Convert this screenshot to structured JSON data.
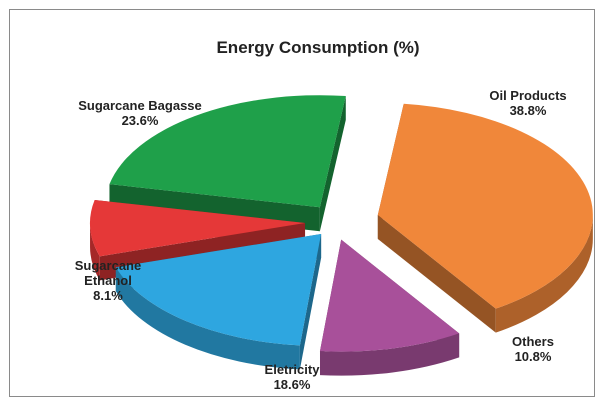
{
  "page_top_text": "",
  "chart_data": {
    "type": "pie",
    "title": "Energy Consumption (%)",
    "unit": "%",
    "slices": [
      {
        "name": "Oil Products",
        "value": 38.8,
        "value_label": "38.8%",
        "color": "#f0873a"
      },
      {
        "name": "Others",
        "value": 10.8,
        "value_label": "10.8%",
        "color": "#a8509a"
      },
      {
        "name": "Eletricity",
        "value": 18.6,
        "value_label": "18.6%",
        "color": "#2ea6e0"
      },
      {
        "name": "Sugarcane Ethanol",
        "value": 8.1,
        "value_label": "8.1%",
        "color": "#e53838"
      },
      {
        "name": "Sugarcane Bagasse",
        "value": 23.6,
        "value_label": "23.6%",
        "color": "#1fa04a"
      }
    ],
    "legend": "none",
    "grid": false,
    "style": "3d-exploded"
  }
}
